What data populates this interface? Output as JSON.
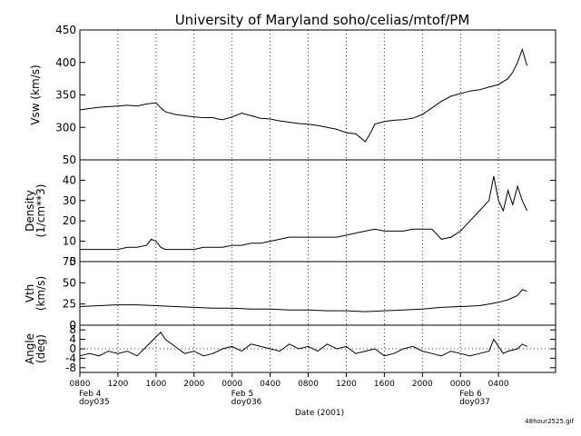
{
  "header": {
    "title": "University of Maryland  soho/celias/mtof/PM"
  },
  "footer": {
    "filename": "48hour2525.gif"
  },
  "chart_data": [
    {
      "type": "line",
      "ylabel": "Vsw (km/s)",
      "ylim": [
        250,
        450
      ],
      "yticks": [
        300,
        350,
        400,
        450
      ],
      "grid": "dotted-vertical",
      "series": [
        {
          "x": [
            0,
            1,
            2,
            3,
            4,
            5,
            6,
            7,
            8,
            8.5,
            9,
            10,
            11,
            12,
            13,
            14,
            14.5,
            15,
            16,
            17,
            18,
            19,
            20,
            21,
            22,
            23,
            24,
            25,
            26,
            27,
            28,
            29,
            29.5,
            30,
            30.3,
            30.6,
            31,
            32,
            33,
            34,
            35,
            36,
            37,
            38,
            39,
            40,
            41,
            42,
            43,
            44,
            45,
            45.5,
            46,
            46.5,
            47
          ],
          "y": [
            327,
            329,
            331,
            332,
            333,
            334,
            333,
            336,
            338,
            330,
            324,
            320,
            318,
            316,
            315,
            315,
            313,
            312,
            316,
            322,
            318,
            314,
            313,
            310,
            308,
            306,
            305,
            303,
            300,
            297,
            292,
            290,
            284,
            278,
            285,
            293,
            305,
            309,
            311,
            312,
            314,
            320,
            330,
            340,
            348,
            352,
            356,
            358,
            362,
            366,
            375,
            385,
            400,
            420,
            395
          ]
        }
      ]
    },
    {
      "type": "line",
      "ylabel": "Density (1/cm**3)",
      "ylim": [
        0,
        50
      ],
      "yticks": [
        0,
        10,
        20,
        30,
        40,
        50
      ],
      "grid": "dotted-vertical",
      "series": [
        {
          "x": [
            0,
            1,
            2,
            3,
            4,
            5,
            6,
            7,
            7.5,
            8,
            8.5,
            9,
            10,
            11,
            12,
            13,
            14,
            15,
            16,
            17,
            18,
            19,
            20,
            21,
            22,
            23,
            24,
            25,
            26,
            27,
            28,
            29,
            30,
            31,
            32,
            33,
            34,
            35,
            36,
            37,
            38,
            39,
            40,
            41,
            42,
            43,
            43.5,
            44,
            44.5,
            45,
            45.5,
            46,
            46.5,
            47
          ],
          "y": [
            6,
            6,
            6,
            6,
            6,
            7,
            7,
            8,
            11,
            10,
            7,
            6,
            6,
            6,
            6,
            7,
            7,
            7,
            8,
            8,
            9,
            9,
            10,
            11,
            12,
            12,
            12,
            12,
            12,
            12,
            13,
            14,
            15,
            16,
            15,
            15,
            15,
            16,
            16,
            16,
            11,
            12,
            15,
            20,
            25,
            30,
            42,
            30,
            25,
            35,
            28,
            37,
            30,
            25
          ]
        }
      ]
    },
    {
      "type": "line",
      "ylabel": "Vth (km/s)",
      "ylim": [
        0,
        75
      ],
      "yticks": [
        0,
        25,
        50,
        75
      ],
      "grid": "dotted-vertical",
      "series": [
        {
          "x": [
            0,
            2,
            4,
            6,
            8,
            10,
            12,
            14,
            16,
            18,
            20,
            22,
            24,
            26,
            28,
            30,
            32,
            34,
            36,
            38,
            40,
            42,
            43,
            44,
            45,
            46,
            46.5,
            47
          ],
          "y": [
            22,
            23,
            24,
            24,
            23,
            22,
            21,
            20,
            20,
            19,
            19,
            18,
            18,
            17,
            17,
            16,
            17,
            18,
            19,
            21,
            22,
            23,
            25,
            27,
            30,
            35,
            42,
            40
          ]
        }
      ]
    },
    {
      "type": "line",
      "ylabel": "Angle (deg)",
      "ylim": [
        -10,
        10
      ],
      "yticks": [
        -8,
        -4,
        0,
        4,
        8
      ],
      "yticklabels": [
        "-8",
        "-4",
        "0",
        "4",
        "8"
      ],
      "grid": "dotted-vertical",
      "reference_line": 0,
      "series": [
        {
          "x": [
            0,
            1,
            2,
            3,
            4,
            5,
            6,
            7,
            8,
            8.5,
            9,
            10,
            11,
            12,
            13,
            14,
            15,
            16,
            17,
            18,
            19,
            20,
            21,
            22,
            23,
            24,
            25,
            26,
            27,
            28,
            29,
            30,
            31,
            32,
            33,
            34,
            35,
            36,
            37,
            38,
            39,
            40,
            41,
            42,
            43,
            43.5,
            44,
            44.5,
            45,
            46,
            46.5,
            47
          ],
          "y": [
            -3,
            -2,
            -3,
            -1,
            -2,
            -1,
            -3,
            1,
            5,
            7,
            4,
            1,
            -2,
            -1,
            -3,
            -2,
            0,
            1,
            -1,
            2,
            1,
            0,
            -1,
            2,
            0,
            1,
            -1,
            2,
            0,
            1,
            -2,
            -1,
            0,
            -3,
            -2,
            0,
            1,
            -1,
            -2,
            -3,
            -1,
            -2,
            -3,
            -2,
            -1,
            4,
            1,
            -2,
            -1,
            0,
            2,
            1
          ]
        }
      ]
    }
  ],
  "xaxis": {
    "xlim": [
      0,
      50
    ],
    "ticks": [
      0,
      4,
      8,
      12,
      16,
      20,
      24,
      28,
      32,
      36,
      40,
      44
    ],
    "ticklabels": [
      "0800",
      "1200",
      "1600",
      "2000",
      "0000",
      "0400",
      "0800",
      "1200",
      "1600",
      "2000",
      "0000",
      "0400"
    ],
    "day_labels": [
      {
        "x": 0,
        "lines": [
          "Feb 4",
          "doy035"
        ]
      },
      {
        "x": 16,
        "lines": [
          "Feb 5",
          "doy036"
        ]
      },
      {
        "x": 40,
        "lines": [
          "Feb 6",
          "doy037"
        ]
      }
    ],
    "label": "Date (2001)"
  }
}
